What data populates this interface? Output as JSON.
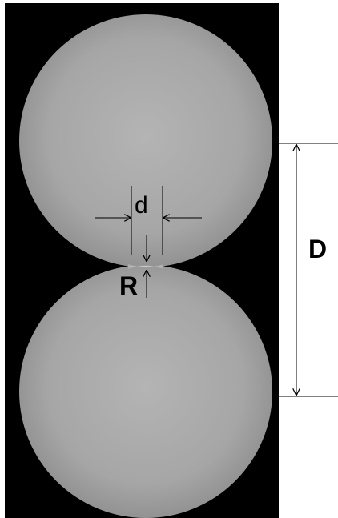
{
  "figure": {
    "labels": {
      "small_diameter": "d",
      "neck_radius": "R",
      "sphere_diameter": "D"
    },
    "colors": {
      "background_panel": "#000000",
      "sphere_light": "#b2b2b2",
      "sphere_mid": "#a1a1a1",
      "sphere_edge": "#8b8b8b",
      "neck": "#cfcfcf",
      "annotation": "#000000",
      "page": "#ffffff"
    }
  }
}
